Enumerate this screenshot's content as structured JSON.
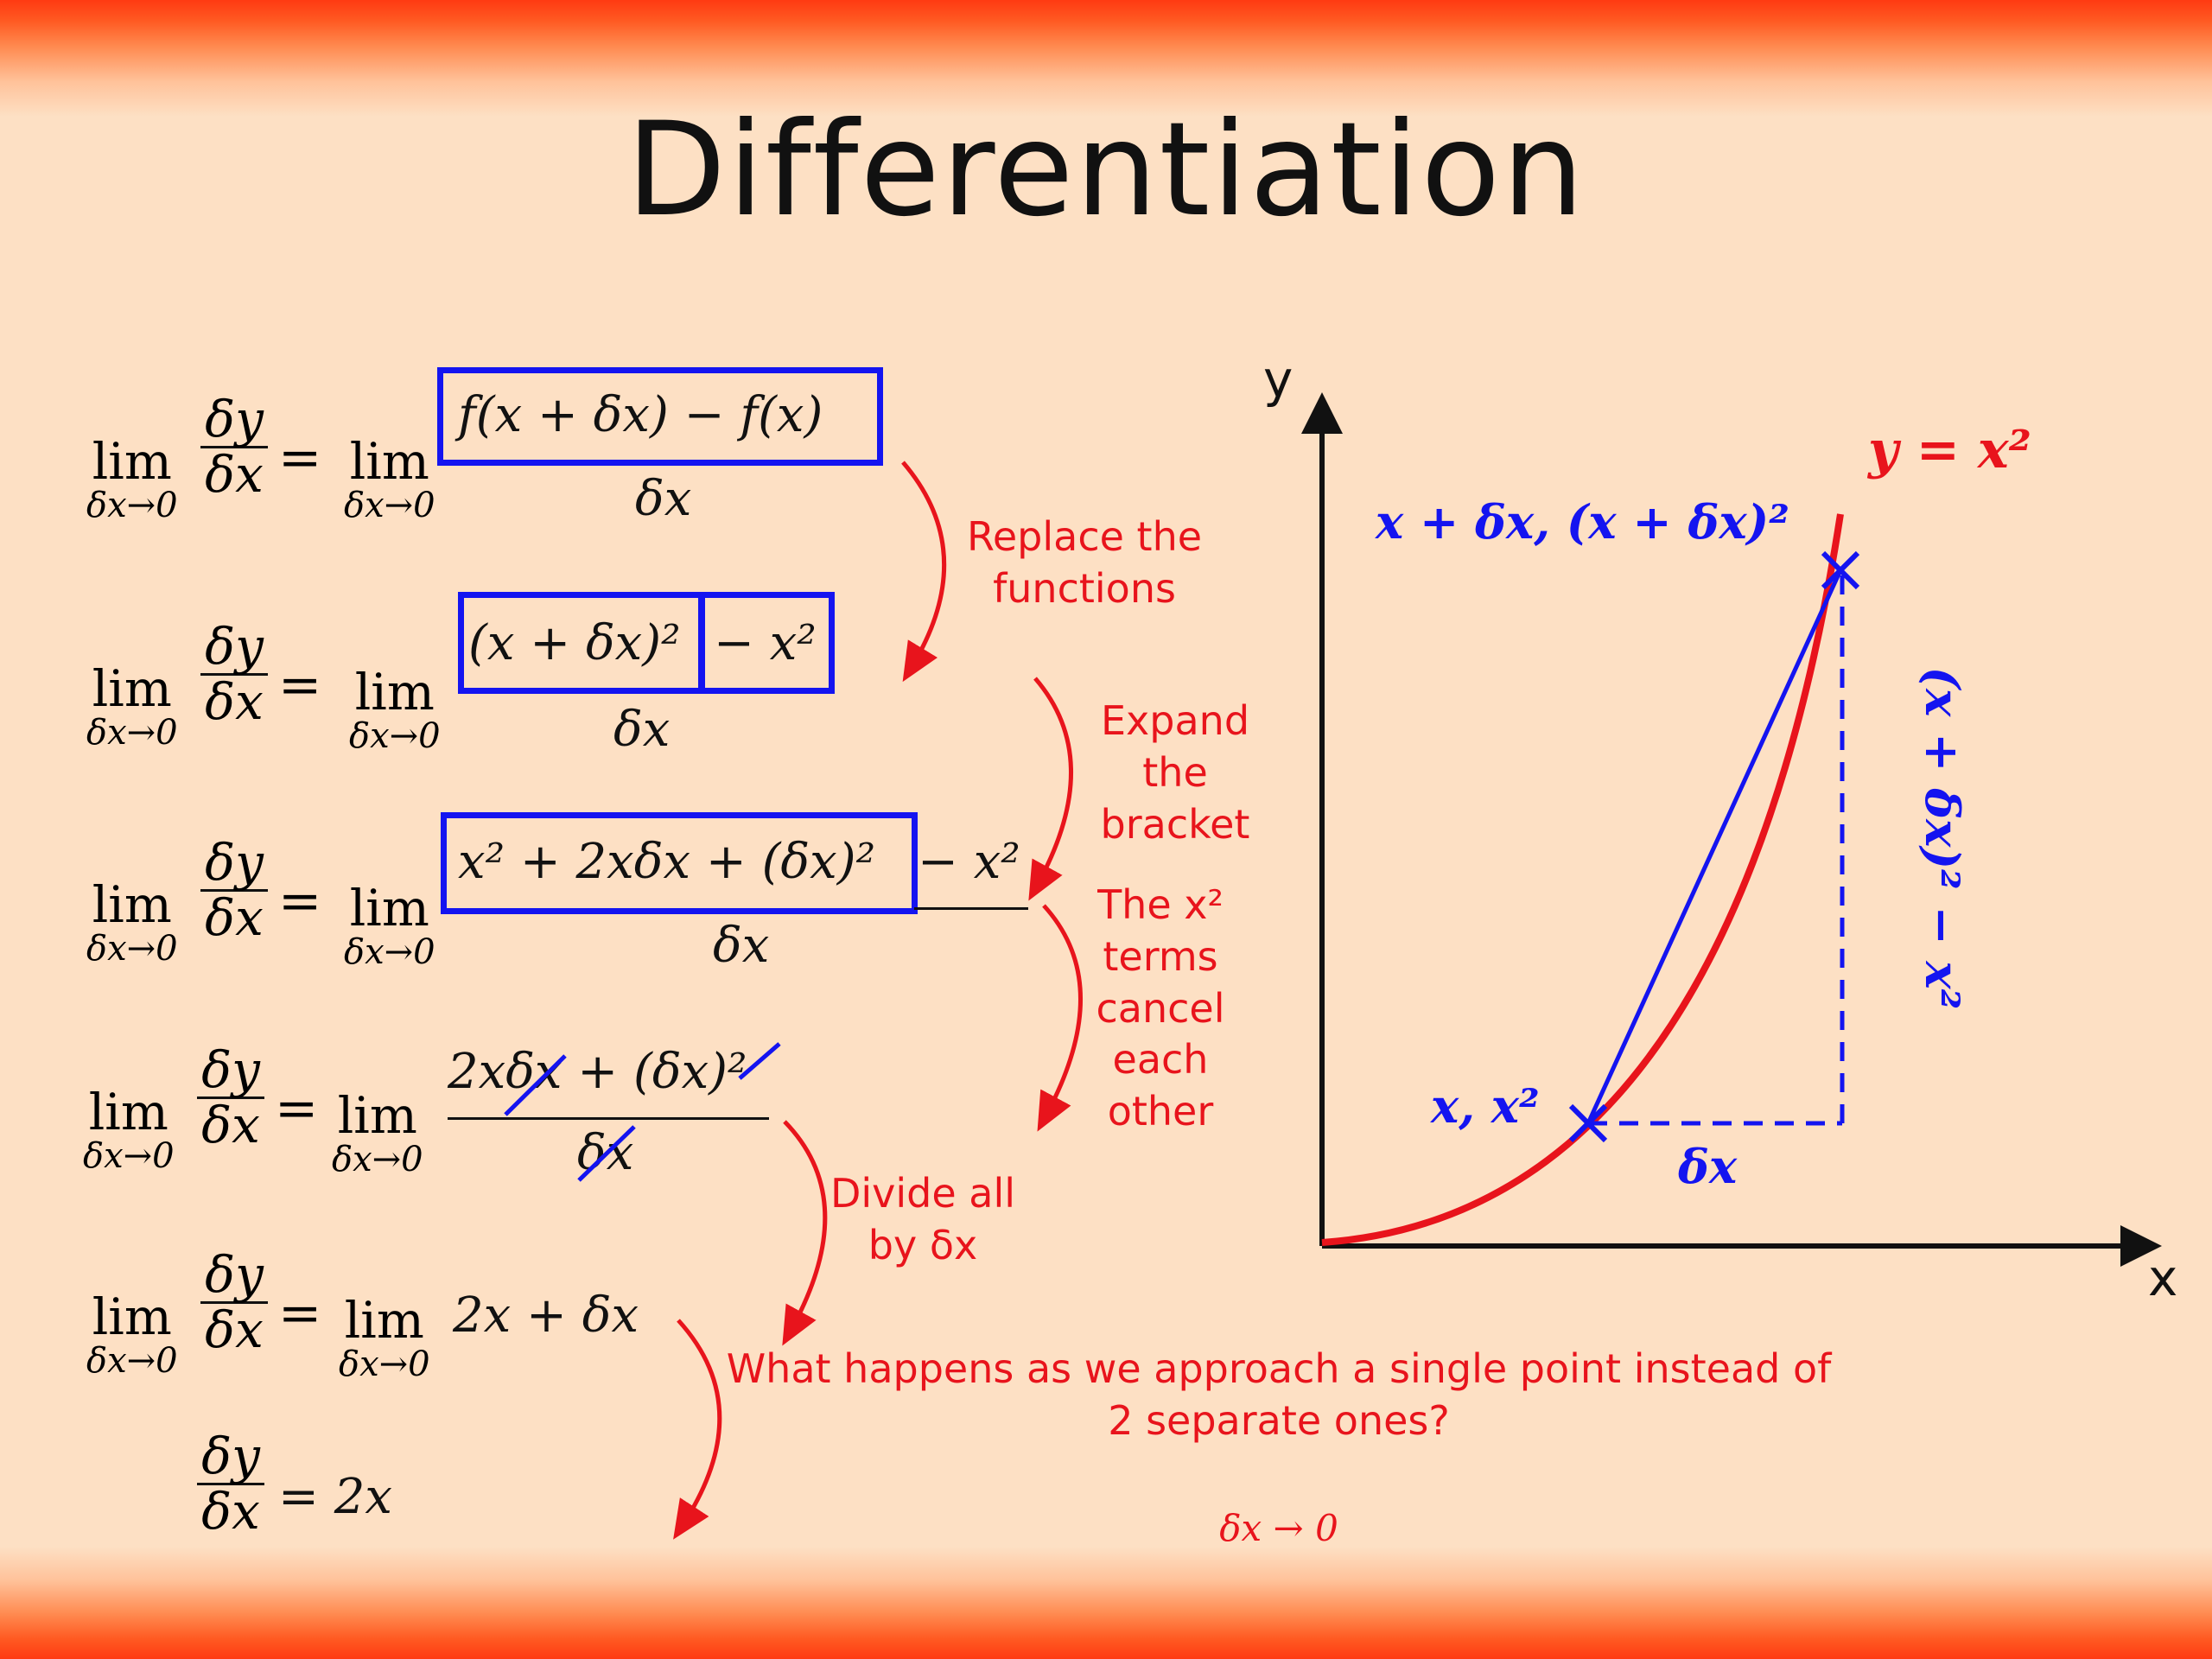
{
  "title": "Differentiation",
  "equations": {
    "lim_word": "lim",
    "lim_sub": "δx→0",
    "dy": "δy",
    "dx": "δx",
    "eq_sign": "=",
    "row1_num": "f(x + δx) − f(x)",
    "row2_num_a": "(x + δx)²",
    "row2_num_b": "− x²",
    "row3_num_a": "x² + 2xδx + (δx)²",
    "row3_num_b": "− x²",
    "row4_num": "2xδx + (δx)²",
    "row5_rhs": "2x + δx",
    "row6_rhs": "= 2x"
  },
  "notes": {
    "replace": "Replace the functions",
    "expand": "Expand the bracket",
    "cancel": "The x² terms cancel each other",
    "divide": "Divide all by δx",
    "approach": "What happens as we approach a  single point instead of 2 separate ones?",
    "limit": "δx → 0"
  },
  "graph": {
    "y_axis": "y",
    "x_axis": "x",
    "curve_label": "y = x²",
    "point_upper": "x + δx, (x + δx)²",
    "point_lower": "x, x²",
    "run_label": "δx",
    "rise_label": "(x + δx)² − x²"
  },
  "colors": {
    "curve": "#e8141c",
    "blue": "#1414f0",
    "axis": "#111111",
    "background": "#fde0c4"
  }
}
